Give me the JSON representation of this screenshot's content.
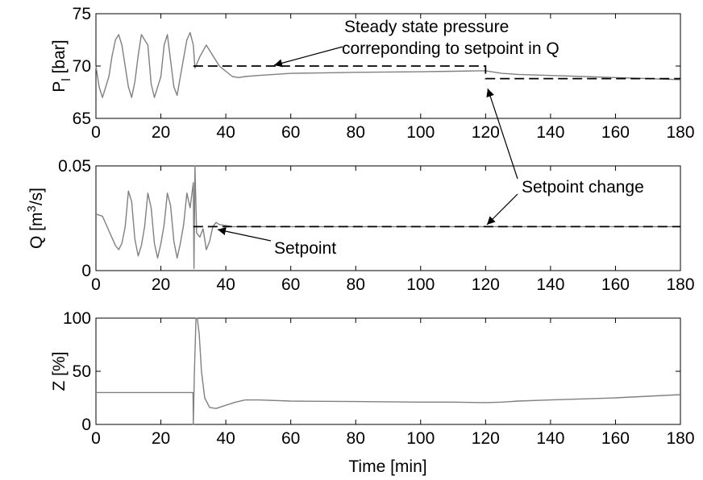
{
  "chart_data": [
    {
      "type": "line",
      "id": "pressure",
      "title": "",
      "xlabel": "",
      "ylabel": "P",
      "ylabel_sub": "l",
      "ylabel_unit": " [bar]",
      "xlim": [
        0,
        180
      ],
      "ylim": [
        65,
        75
      ],
      "xticks": [
        0,
        20,
        40,
        60,
        80,
        100,
        120,
        140,
        160,
        180
      ],
      "yticks": [
        65,
        70,
        75
      ],
      "grid": false,
      "legend": "none",
      "series": [
        {
          "role": "measured",
          "style": "solid-gray",
          "color": "#808080",
          "x": [
            0,
            1,
            2,
            4,
            5,
            6,
            7,
            8,
            10,
            11,
            12,
            13,
            14,
            16,
            17,
            18,
            20,
            21,
            22,
            24,
            25,
            26,
            28,
            29,
            30,
            30.5,
            32,
            34,
            36,
            38,
            40,
            42,
            44,
            46,
            50,
            60,
            80,
            100,
            110,
            118,
            120,
            125,
            130,
            140,
            150,
            160,
            170,
            180
          ],
          "y": [
            70,
            68,
            67,
            69,
            71,
            72.5,
            73,
            72,
            68,
            67,
            68.5,
            71,
            73,
            72,
            68.3,
            67,
            69,
            72,
            73,
            68,
            67.2,
            69,
            72.5,
            73.2,
            72,
            69.8,
            70.9,
            72,
            71,
            70,
            69.5,
            69,
            68.9,
            69.0,
            69.1,
            69.3,
            69.4,
            69.45,
            69.5,
            69.55,
            69.55,
            69.3,
            69.2,
            69.1,
            69.0,
            68.9,
            68.8,
            68.7
          ]
        },
        {
          "role": "steady-state",
          "style": "dashed-black",
          "color": "#000000",
          "x": [
            30,
            120,
            120,
            180
          ],
          "y": [
            70,
            70,
            68.8,
            68.8
          ]
        }
      ],
      "annotations": [
        {
          "lines": [
            "Steady state pressure",
            "correponding to setpoint in Q"
          ]
        }
      ]
    },
    {
      "type": "line",
      "id": "flow",
      "title": "",
      "xlabel": "",
      "ylabel": "Q [m",
      "ylabel_sup": "3",
      "ylabel_unit": "/s]",
      "xlim": [
        0,
        180
      ],
      "ylim": [
        0,
        0.05
      ],
      "xticks": [
        0,
        20,
        40,
        60,
        80,
        100,
        120,
        140,
        160,
        180
      ],
      "yticks": [
        0,
        0.05
      ],
      "ytick_labels": [
        "0",
        "0.05"
      ],
      "grid": false,
      "legend": "none",
      "series": [
        {
          "role": "measured",
          "style": "solid-gray",
          "color": "#808080",
          "x": [
            0,
            2,
            4,
            6,
            7,
            8,
            9,
            10,
            11,
            12,
            13,
            14,
            15,
            16,
            17,
            18,
            19,
            20,
            21,
            22,
            23,
            24,
            25,
            26,
            27,
            28,
            29,
            30,
            30.2,
            30.5,
            31,
            32,
            33,
            34,
            35,
            36,
            37,
            38,
            40,
            42,
            44,
            46,
            50,
            60,
            80,
            100,
            120,
            140,
            160,
            180
          ],
          "y": [
            0.027,
            0.026,
            0.019,
            0.012,
            0.01,
            0.013,
            0.021,
            0.038,
            0.033,
            0.015,
            0.007,
            0.012,
            0.021,
            0.037,
            0.03,
            0.013,
            0.006,
            0.013,
            0.022,
            0.037,
            0.031,
            0.014,
            0.006,
            0.013,
            0.022,
            0.037,
            0.03,
            0.042,
            0.001,
            0.05,
            0.018,
            0.016,
            0.02,
            0.01,
            0.014,
            0.021,
            0.023,
            0.022,
            0.0215,
            0.021,
            0.021,
            0.021,
            0.021,
            0.021,
            0.021,
            0.021,
            0.021,
            0.021,
            0.021,
            0.021
          ]
        },
        {
          "role": "setpoint",
          "style": "dashed-black",
          "color": "#000000",
          "x": [
            30,
            180
          ],
          "y": [
            0.021,
            0.021
          ]
        }
      ],
      "annotations": [
        {
          "lines": [
            "Setpoint change"
          ]
        },
        {
          "lines": [
            "Setpoint"
          ]
        }
      ]
    },
    {
      "type": "line",
      "id": "opening",
      "title": "",
      "xlabel": "Time [min]",
      "ylabel": "Z [%]",
      "xlim": [
        0,
        180
      ],
      "ylim": [
        0,
        100
      ],
      "xticks": [
        0,
        20,
        40,
        60,
        80,
        100,
        120,
        140,
        160,
        180
      ],
      "yticks": [
        0,
        50,
        100
      ],
      "grid": false,
      "legend": "none",
      "series": [
        {
          "role": "measured",
          "style": "solid-gray",
          "color": "#808080",
          "x": [
            0,
            29.9,
            30,
            30.3,
            30.8,
            31.2,
            31.8,
            32.5,
            33.5,
            35,
            37,
            40,
            43,
            46,
            50,
            60,
            80,
            100,
            110,
            120,
            125,
            130,
            140,
            150,
            160,
            170,
            180
          ],
          "y": [
            30,
            30,
            0,
            45,
            100,
            100,
            85,
            50,
            25,
            16,
            15,
            18,
            21,
            23,
            23,
            22,
            21.5,
            21,
            21,
            20.5,
            21,
            22,
            23,
            24,
            25,
            26.5,
            28
          ]
        }
      ],
      "annotations": []
    }
  ]
}
